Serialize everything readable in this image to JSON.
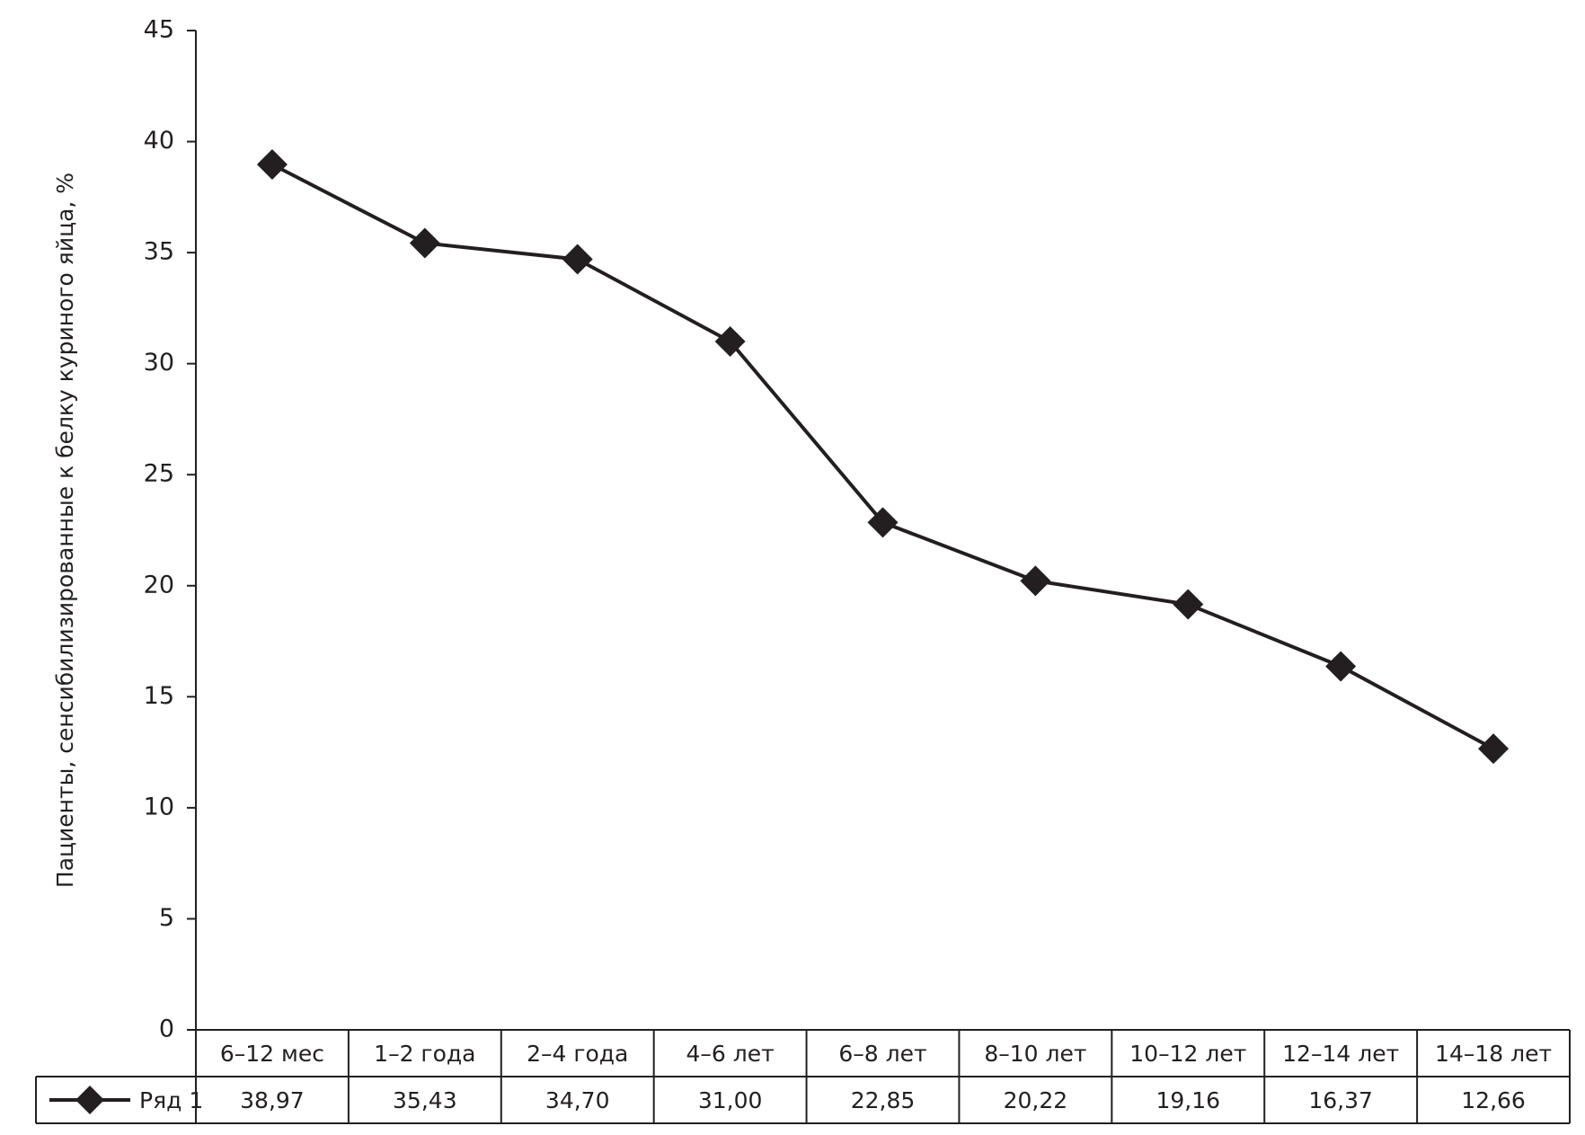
{
  "chart_data": {
    "type": "line",
    "y_label": "Пациенты, сенсибилизированные к белку куриного яйца, %",
    "categories": [
      "6–12 мес",
      "1–2 года",
      "2–4 года",
      "4–6 лет",
      "6–8 лет",
      "8–10 лет",
      "10–12 лет",
      "12–14 лет",
      "14–18 лет"
    ],
    "series": [
      {
        "name": "Ряд 1",
        "color": "#231f20",
        "values": [
          38.97,
          35.43,
          34.7,
          31.0,
          22.85,
          20.22,
          19.16,
          16.37,
          12.66
        ],
        "value_labels": [
          "38,97",
          "35,43",
          "34,70",
          "31,00",
          "22,85",
          "20,22",
          "19,16",
          "16,37",
          "12,66"
        ]
      }
    ],
    "ylim": [
      0,
      45
    ],
    "yticks": [
      0,
      5,
      10,
      15,
      20,
      25,
      30,
      35,
      40,
      45
    ],
    "grid": false
  }
}
